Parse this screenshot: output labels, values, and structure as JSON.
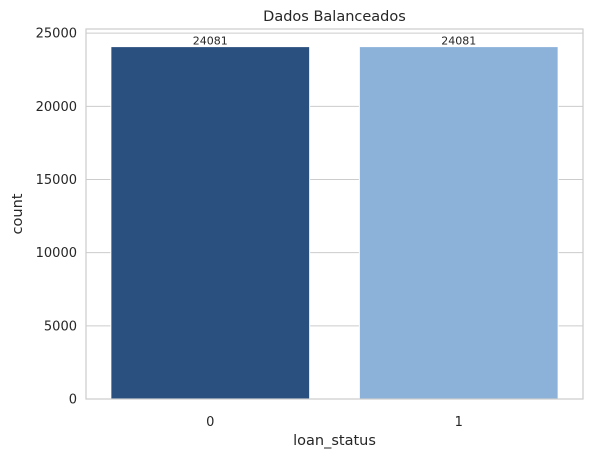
{
  "chart_data": {
    "type": "bar",
    "title": "Dados Balanceados",
    "xlabel": "loan_status",
    "ylabel": "count",
    "categories": [
      "0",
      "1"
    ],
    "values": [
      24081,
      24081
    ],
    "data_labels": [
      "24081",
      "24081"
    ],
    "bar_colors": [
      "#2a5080",
      "#8db2da"
    ],
    "ylim": [
      0,
      25284
    ],
    "yticks": [
      0,
      5000,
      10000,
      15000,
      20000,
      25000
    ],
    "ytick_labels": [
      "0",
      "5000",
      "10000",
      "15000",
      "20000",
      "25000"
    ],
    "grid": "horizontal",
    "legend": "none"
  }
}
